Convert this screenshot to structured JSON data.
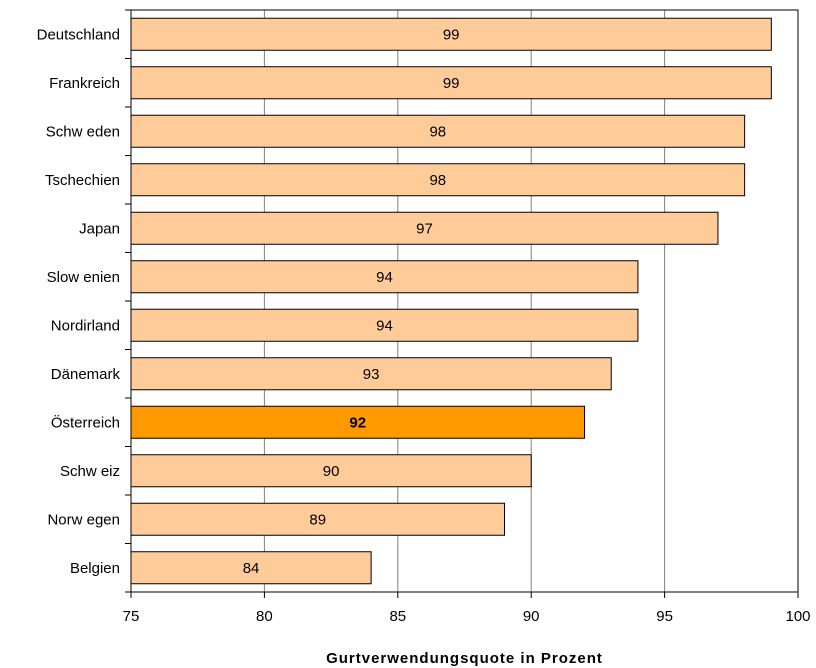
{
  "chart_data": {
    "type": "bar",
    "orientation": "horizontal",
    "title": "",
    "xlabel": "Gurtverwendungsquote in Prozent",
    "ylabel": "",
    "xlim": [
      75,
      100
    ],
    "xticks": [
      "75",
      "80",
      "85",
      "90",
      "95",
      "100"
    ],
    "grid": true,
    "legend": "none",
    "categories": [
      "Deutschland",
      "Frankreich",
      "Schw eden",
      "Tschechien",
      "Japan",
      "Slow enien",
      "Nordirland",
      "Dänemark",
      "Österreich",
      "Schw eiz",
      "Norw egen",
      "Belgien"
    ],
    "values": [
      99,
      99,
      98,
      98,
      97,
      94,
      94,
      93,
      92,
      90,
      89,
      84
    ],
    "data_labels": [
      "99",
      "99",
      "98",
      "98",
      "97",
      "94",
      "94",
      "93",
      "92",
      "90",
      "89",
      "84"
    ],
    "highlight_index": 8,
    "colors": {
      "bar": "#FFCC99",
      "highlight": "#FF9900",
      "outline": "#000000",
      "grid": "#808080"
    }
  }
}
